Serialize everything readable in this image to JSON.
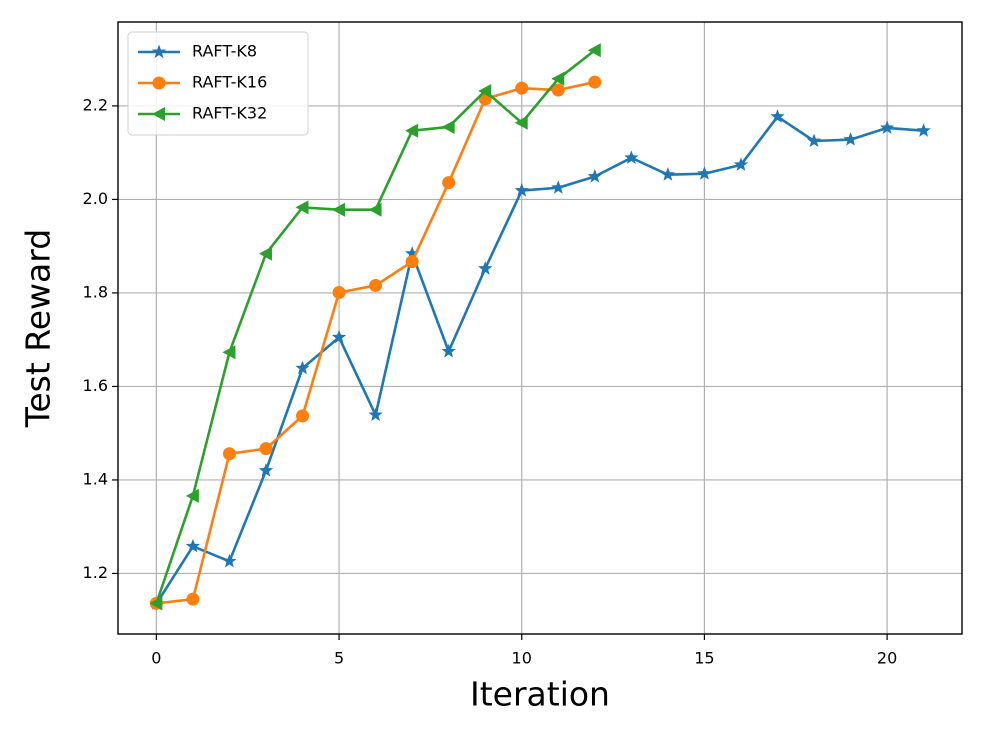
{
  "chart_data": {
    "type": "line",
    "xlabel": "Iteration",
    "ylabel": "Test Reward",
    "x": [
      0,
      1,
      2,
      3,
      4,
      5,
      6,
      7,
      8,
      9,
      10,
      11,
      12,
      13,
      14,
      15,
      16,
      17,
      18,
      19,
      20,
      21
    ],
    "series": [
      {
        "name": "RAFT-K8",
        "color": "#1f77b4",
        "marker": "star",
        "values": [
          1.135,
          1.258,
          1.226,
          1.42,
          1.639,
          1.705,
          1.539,
          1.884,
          1.675,
          1.852,
          2.019,
          2.025,
          2.049,
          2.089,
          2.053,
          2.055,
          2.074,
          2.177,
          2.125,
          2.128,
          2.153,
          2.147
        ]
      },
      {
        "name": "RAFT-K16",
        "color": "#ff7f0e",
        "marker": "circle",
        "values": [
          1.136,
          1.145,
          1.456,
          1.467,
          1.537,
          1.801,
          1.816,
          1.867,
          2.036,
          2.215,
          2.238,
          2.234,
          2.251,
          null,
          null,
          null,
          null,
          null,
          null,
          null,
          null,
          null
        ]
      },
      {
        "name": "RAFT-K32",
        "color": "#2ca02c",
        "marker": "triangle-left",
        "values": [
          1.136,
          1.366,
          1.673,
          1.884,
          1.983,
          1.978,
          1.978,
          2.147,
          2.155,
          2.232,
          2.164,
          2.258,
          2.319,
          null,
          null,
          null,
          null,
          null,
          null,
          null,
          null,
          null
        ]
      }
    ],
    "xlim": [
      -1.05,
      22.05
    ],
    "xticks": [
      0,
      5,
      10,
      15,
      20
    ],
    "ylim": [
      1.0705,
      2.3795
    ],
    "yticks": [
      {
        "value": 1.2,
        "label": "1.2"
      },
      {
        "value": 1.4,
        "label": "1.4"
      },
      {
        "value": 1.6,
        "label": "1.6"
      },
      {
        "value": 1.8,
        "label": "1.8"
      },
      {
        "value": 2.0,
        "label": "2.0"
      },
      {
        "value": 2.2,
        "label": "2.2"
      }
    ],
    "grid": true,
    "legend": "upper-left"
  }
}
